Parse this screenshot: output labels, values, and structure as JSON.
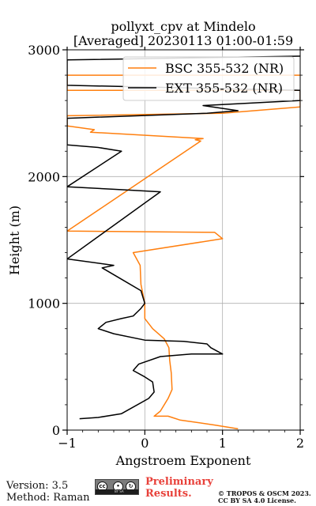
{
  "chart_data": {
    "type": "line",
    "title": "pollyxt_cpv at Mindelo",
    "subtitle": "[Averaged] 20230113 01:00-01:59",
    "xlabel": "Angstroem Exponent",
    "ylabel": "Height (m)",
    "xlim": [
      -1,
      2
    ],
    "ylim": [
      0,
      3000
    ],
    "xticks": [
      "−1",
      "0",
      "1",
      "2"
    ],
    "xtick_values": [
      -1,
      0,
      1,
      2
    ],
    "yticks": [
      "0",
      "1000",
      "2000",
      "3000"
    ],
    "ytick_values": [
      0,
      1000,
      2000,
      3000
    ],
    "grid": true,
    "legend_position": "top-right",
    "series": [
      {
        "name": "BSC 355-532 (NR)",
        "color": "#ff7f0e",
        "points": [
          [
            1.2,
            10
          ],
          [
            0.9,
            40
          ],
          [
            0.45,
            80
          ],
          [
            0.35,
            100
          ],
          [
            0.3,
            110
          ],
          [
            0.12,
            110
          ],
          [
            0.2,
            150
          ],
          [
            0.3,
            250
          ],
          [
            0.35,
            320
          ],
          [
            0.34,
            450
          ],
          [
            0.32,
            550
          ],
          [
            0.31,
            650
          ],
          [
            0.25,
            720
          ],
          [
            0.1,
            800
          ],
          [
            0.0,
            880
          ],
          [
            0.0,
            1000
          ],
          [
            -0.05,
            1150
          ],
          [
            -0.06,
            1300
          ],
          [
            -0.15,
            1400
          ],
          [
            1.0,
            1510
          ],
          [
            0.9,
            1560
          ],
          [
            -1.0,
            1570
          ],
          [
            0.72,
            2280
          ],
          [
            0.65,
            2290
          ],
          [
            0.75,
            2300
          ],
          [
            -0.7,
            2350
          ],
          [
            -0.65,
            2370
          ],
          [
            -1.0,
            2400
          ],
          [
            -1.0,
            2480
          ],
          [
            1.0,
            2500
          ],
          [
            2.0,
            2550
          ],
          [
            2.0,
            2680
          ],
          [
            -1.0,
            2680
          ],
          [
            -1.0,
            2800
          ],
          [
            2.0,
            2800
          ]
        ]
      },
      {
        "name": "EXT 355-532 (NR)",
        "color": "#000000",
        "points": [
          [
            -0.84,
            90
          ],
          [
            -0.6,
            100
          ],
          [
            -0.3,
            130
          ],
          [
            0.05,
            250
          ],
          [
            0.12,
            300
          ],
          [
            0.1,
            380
          ],
          [
            0.0,
            420
          ],
          [
            -0.15,
            470
          ],
          [
            -0.08,
            520
          ],
          [
            0.2,
            580
          ],
          [
            0.6,
            600
          ],
          [
            1.0,
            600
          ],
          [
            0.85,
            650
          ],
          [
            0.8,
            680
          ],
          [
            0.5,
            700
          ],
          [
            0.0,
            710
          ],
          [
            -0.4,
            760
          ],
          [
            -0.6,
            800
          ],
          [
            -0.5,
            850
          ],
          [
            -0.3,
            880
          ],
          [
            -0.15,
            900
          ],
          [
            -0.05,
            960
          ],
          [
            0.0,
            1000
          ],
          [
            -0.05,
            1100
          ],
          [
            -0.3,
            1190
          ],
          [
            -0.55,
            1280
          ],
          [
            -0.4,
            1300
          ],
          [
            -1.0,
            1350
          ],
          [
            0.2,
            1880
          ],
          [
            -0.4,
            1900
          ],
          [
            -1.0,
            1920
          ],
          [
            -0.3,
            2200
          ],
          [
            -0.6,
            2230
          ],
          [
            -1.0,
            2250
          ],
          [
            -1.0,
            2460
          ],
          [
            0.8,
            2500
          ],
          [
            1.2,
            2520
          ],
          [
            0.75,
            2560
          ],
          [
            2.0,
            2600
          ],
          [
            2.0,
            2680
          ],
          [
            -1.0,
            2720
          ],
          [
            -1.0,
            2920
          ],
          [
            2.0,
            2950
          ]
        ]
      }
    ]
  },
  "footer": {
    "version": "Version: 3.5",
    "method": "Method: Raman",
    "preliminary_line1": "Preliminary",
    "preliminary_line2": "Results.",
    "copyright_line1": "© TROPOS & OSCM 2023.",
    "copyright_line2": "CC BY SA 4.0 License.",
    "license_icon": "cc-by-sa-badge",
    "license_badge_text": "BY  SA"
  }
}
